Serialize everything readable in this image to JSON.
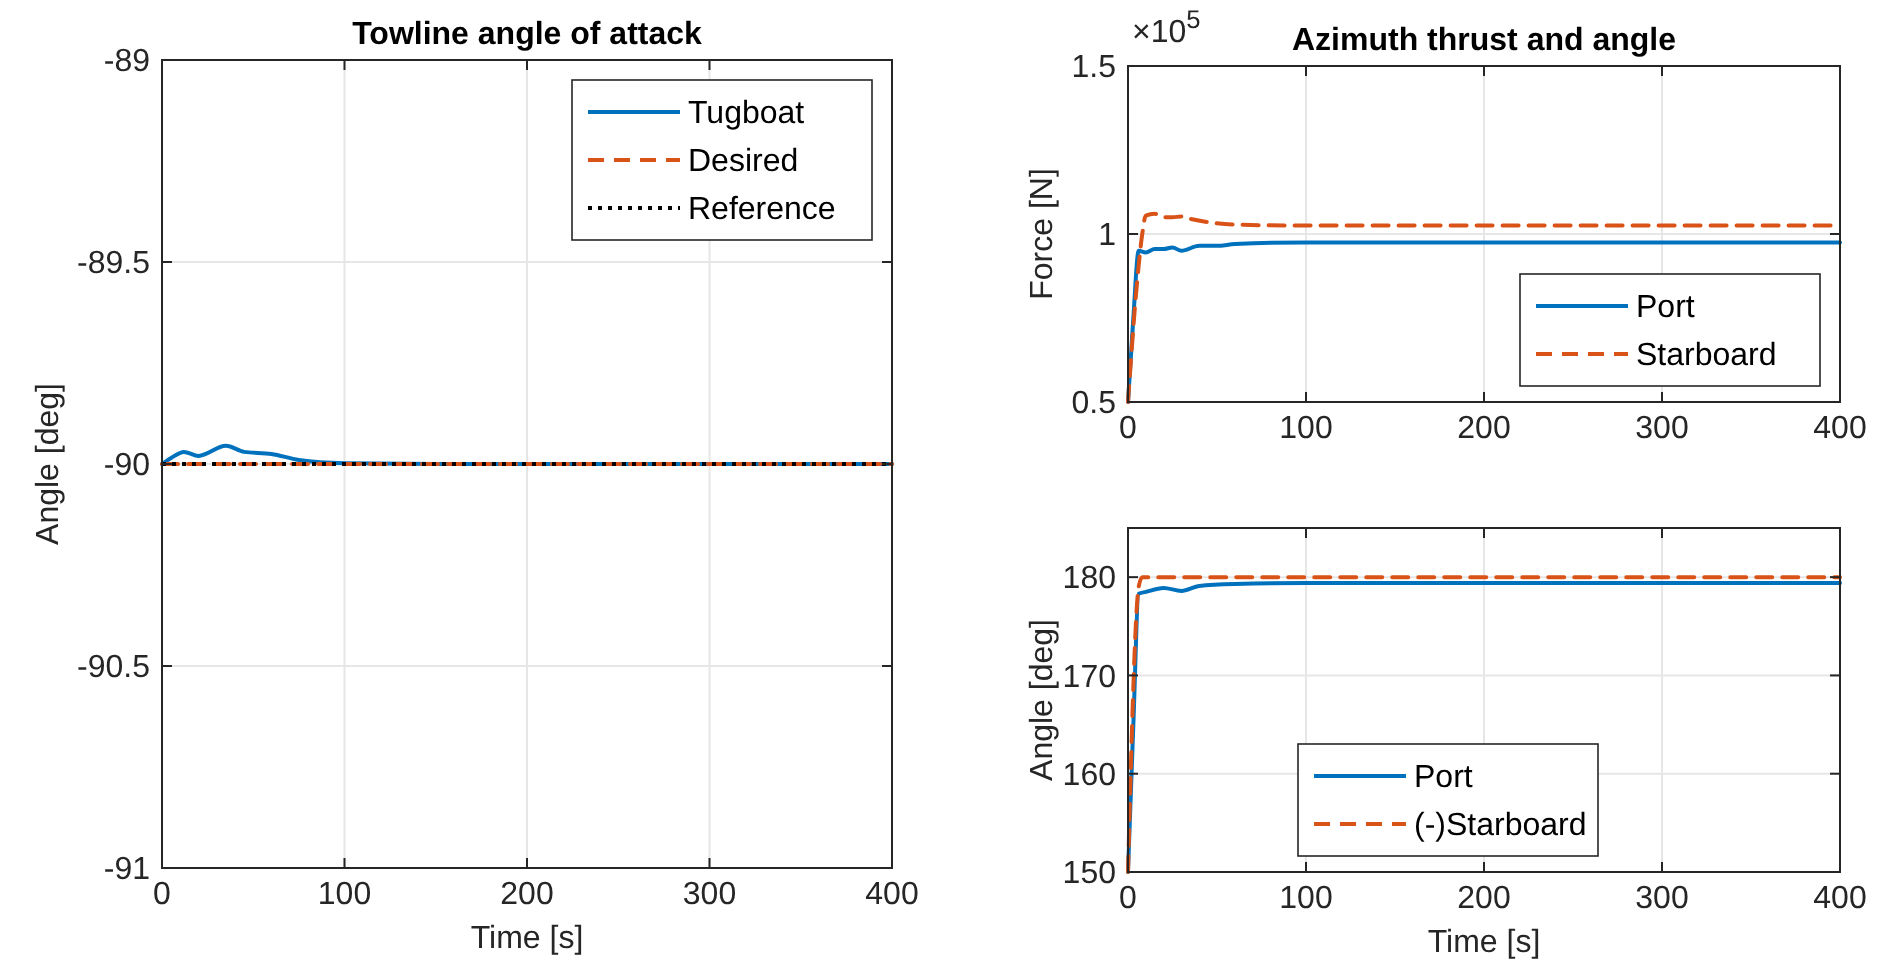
{
  "chart_data": [
    {
      "type": "line",
      "title": "Towline angle of attack",
      "xlabel": "Time [s]",
      "ylabel": "Angle [deg]",
      "xlim": [
        0,
        400
      ],
      "xticks": [
        0,
        100,
        200,
        300,
        400
      ],
      "ylim": [
        -91,
        -89
      ],
      "yticks": [
        -91,
        -90.5,
        -90,
        -89.5,
        -89
      ],
      "grid": true,
      "legend": "top right",
      "series": [
        {
          "name": "Tugboat",
          "color": "#0072bd",
          "line_style": "solid",
          "x": [
            0,
            5,
            12,
            20,
            35,
            45,
            60,
            75,
            100,
            150,
            400
          ],
          "values": [
            -90,
            -89.985,
            -89.97,
            -89.98,
            -89.955,
            -89.97,
            -89.975,
            -89.99,
            -89.998,
            -90,
            -90
          ]
        },
        {
          "name": "Desired",
          "color": "#d95319",
          "line_style": "dashed",
          "x": [
            0,
            400
          ],
          "values": [
            -90,
            -90
          ]
        },
        {
          "name": "Reference",
          "color": "#000000",
          "line_style": "dotted",
          "x": [
            0,
            400
          ],
          "values": [
            -90,
            -90
          ]
        }
      ]
    },
    {
      "type": "line",
      "title": "Azimuth thrust and angle",
      "ylabel": "Force [N]",
      "annotations": [
        "×10$^{5}$"
      ],
      "xlim": [
        0,
        400
      ],
      "xticks": [
        0,
        100,
        200,
        300,
        400
      ],
      "ylim": [
        0.5,
        1.5
      ],
      "yticks": [
        0.5,
        1,
        1.5
      ],
      "grid": true,
      "legend": "bottom right",
      "series": [
        {
          "name": "Port",
          "color": "#0072bd",
          "line_style": "solid",
          "x": [
            0,
            3,
            6,
            10,
            15,
            20,
            25,
            30,
            40,
            50,
            60,
            100,
            400
          ],
          "values": [
            0.5,
            0.75,
            0.95,
            0.945,
            0.955,
            0.955,
            0.96,
            0.95,
            0.965,
            0.965,
            0.97,
            0.975,
            0.975
          ]
        },
        {
          "name": "Starboard",
          "color": "#d95319",
          "line_style": "dashed",
          "x": [
            0,
            5,
            8,
            10,
            15,
            20,
            25,
            30,
            35,
            45,
            60,
            100,
            400
          ],
          "values": [
            0.5,
            0.85,
            1.0,
            1.055,
            1.06,
            1.05,
            1.05,
            1.052,
            1.045,
            1.035,
            1.028,
            1.025,
            1.025
          ]
        }
      ]
    },
    {
      "type": "line",
      "xlabel": "Time [s]",
      "ylabel": "Angle [deg]",
      "xlim": [
        0,
        400
      ],
      "xticks": [
        0,
        100,
        200,
        300,
        400
      ],
      "ylim": [
        150,
        185
      ],
      "yticks": [
        150,
        160,
        170,
        180
      ],
      "grid": true,
      "legend": "bottom",
      "series": [
        {
          "name": "Port",
          "color": "#0072bd",
          "line_style": "solid",
          "x": [
            0,
            3,
            6,
            10,
            20,
            30,
            40,
            60,
            100,
            400
          ],
          "values": [
            150,
            165,
            178.3,
            178.5,
            178.9,
            178.6,
            179.1,
            179.3,
            179.4,
            179.4
          ]
        },
        {
          "name": "(-)Starboard",
          "color": "#d95319",
          "line_style": "dashed",
          "x": [
            0,
            6,
            8,
            400
          ],
          "values": [
            150,
            179,
            180,
            180
          ]
        }
      ]
    }
  ]
}
